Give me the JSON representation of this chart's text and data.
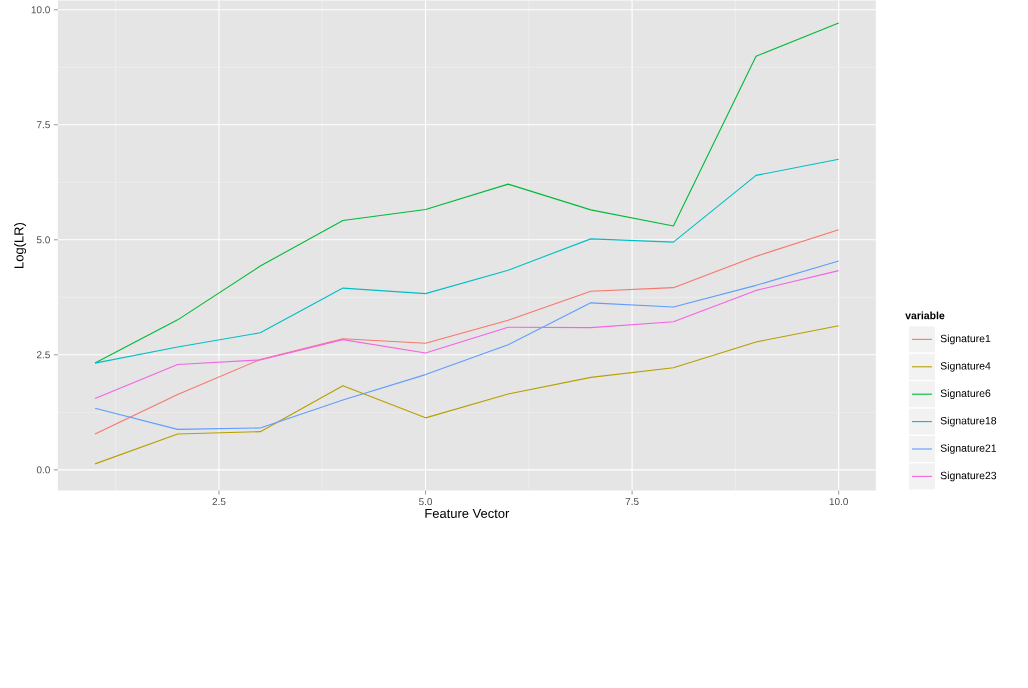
{
  "chart_data": {
    "type": "line",
    "xlabel": "Feature Vector",
    "ylabel": "Log(LR)",
    "legend_title": "variable",
    "x": [
      1,
      2,
      3,
      4,
      5,
      6,
      7,
      8,
      9,
      10
    ],
    "xlim": [
      0.55,
      10.45
    ],
    "ylim": [
      -0.45,
      10.2
    ],
    "xticks": [
      2.5,
      {
        "value": 5,
        "label": "5.0"
      },
      7.5,
      {
        "value": 10,
        "label": "10.0"
      }
    ],
    "yticks": [
      {
        "value": 0,
        "label": "0.0"
      },
      2.5,
      {
        "value": 5,
        "label": "5.0"
      },
      7.5,
      {
        "value": 10,
        "label": "10.0"
      }
    ],
    "grid": true,
    "legend": "right",
    "marker": "none",
    "line_style": "solid",
    "series": [
      {
        "name": "Signature1",
        "color": "#f8766d",
        "values": [
          0.78,
          1.64,
          2.4,
          2.85,
          2.75,
          3.25,
          3.88,
          3.96,
          4.64,
          5.22
        ]
      },
      {
        "name": "Signature4",
        "color": "#b79f00",
        "values": [
          0.13,
          0.78,
          0.83,
          1.83,
          1.13,
          1.65,
          2.01,
          2.22,
          2.78,
          3.13
        ]
      },
      {
        "name": "Signature6",
        "color": "#00ba38",
        "values": [
          2.32,
          3.26,
          4.43,
          5.42,
          5.66,
          6.21,
          5.65,
          5.3,
          8.99,
          9.71
        ]
      },
      {
        "name": "Signature18",
        "color": "#00bfc4",
        "values": [
          2.32,
          2.67,
          2.98,
          3.95,
          3.83,
          4.34,
          5.02,
          4.95,
          6.4,
          6.75
        ]
      },
      {
        "name": "Signature21",
        "color": "#619cff",
        "values": [
          1.34,
          0.88,
          0.91,
          1.52,
          2.07,
          2.72,
          3.63,
          3.54,
          4.01,
          4.54
        ]
      },
      {
        "name": "Signature23",
        "color": "#f564e3",
        "values": [
          1.55,
          2.29,
          2.39,
          2.83,
          2.54,
          3.1,
          3.09,
          3.22,
          3.9,
          4.33
        ]
      }
    ]
  }
}
